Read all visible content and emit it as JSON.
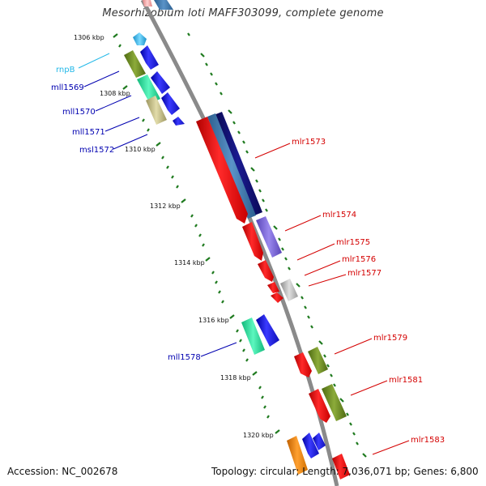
{
  "title": "Mesorhizobium loti MAFF303099, complete genome",
  "footer": {
    "accession": "Accession: NC_002678",
    "summary": "Topology: circular; Length: 7,036,071 bp; Genes: 6,800"
  },
  "colors": {
    "backbone": "#8a8a8a",
    "ruler": "#1e7a1e",
    "forward_label": "#d40000",
    "reverse_label": "#0000b0",
    "rna_label": "#22b8e8"
  },
  "ruler_labels": [
    "1306 kbp",
    "1308 kbp",
    "1310 kbp",
    "1312 kbp",
    "1314 kbp",
    "1316 kbp",
    "1318 kbp",
    "1320 kbp"
  ],
  "genes": {
    "reverse": [
      {
        "label": "rnpB",
        "color": "#3fc4f0",
        "kind": "rna"
      },
      {
        "label": "mll1569",
        "color": "#2b2fe0"
      },
      {
        "label": "mll1570",
        "color": "#2b2fe0"
      },
      {
        "label": "mll1571",
        "color": "#2b2fe0"
      },
      {
        "label": "msl1572",
        "color": "#2b2fe0"
      },
      {
        "label": "mll1578",
        "color": "#2b2fe0"
      }
    ],
    "forward": [
      {
        "label": "mlr1573",
        "color": "#ee1111"
      },
      {
        "label": "mlr1574",
        "color": "#ee1111"
      },
      {
        "label": "mlr1575",
        "color": "#ee1111"
      },
      {
        "label": "mlr1576",
        "color": "#ee1111"
      },
      {
        "label": "mlr1577",
        "color": "#ee1111"
      },
      {
        "label": "mlr1579",
        "color": "#ee1111"
      },
      {
        "label": "mlr1581",
        "color": "#ee1111"
      },
      {
        "label": "mlr1583",
        "color": "#ee1111"
      }
    ]
  }
}
